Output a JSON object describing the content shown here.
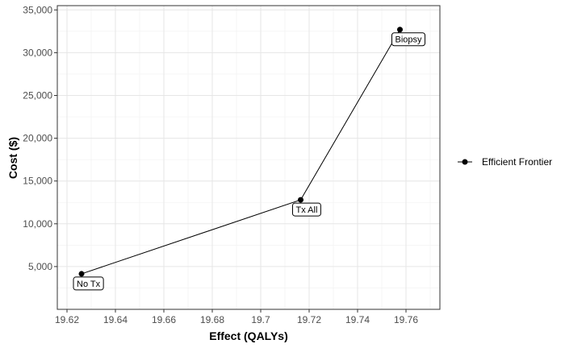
{
  "chart_data": {
    "type": "line",
    "title": "",
    "xlabel": "Effect (QALYs)",
    "ylabel": "Cost ($)",
    "xlim": [
      19.616,
      19.774
    ],
    "ylim": [
      0,
      35500
    ],
    "x_ticks": [
      19.62,
      19.64,
      19.66,
      19.68,
      19.7,
      19.72,
      19.74,
      19.76
    ],
    "x_tick_labels": [
      "19.62",
      "19.64",
      "19.66",
      "19.68",
      "19.7",
      "19.72",
      "19.74",
      "19.76"
    ],
    "y_ticks": [
      5000,
      10000,
      15000,
      20000,
      25000,
      30000,
      35000
    ],
    "y_tick_labels": [
      "5,000",
      "10,000",
      "15,000",
      "20,000",
      "25,000",
      "30,000",
      "35,000"
    ],
    "grid": true,
    "legend_position": "right",
    "series": [
      {
        "name": "Efficient Frontier",
        "color": "#000000",
        "points": [
          {
            "label": "No Tx",
            "x": 19.626,
            "y": 4150
          },
          {
            "label": "Tx All",
            "x": 19.7165,
            "y": 12800
          },
          {
            "label": "Biopsy",
            "x": 19.7575,
            "y": 32700
          }
        ]
      }
    ]
  }
}
